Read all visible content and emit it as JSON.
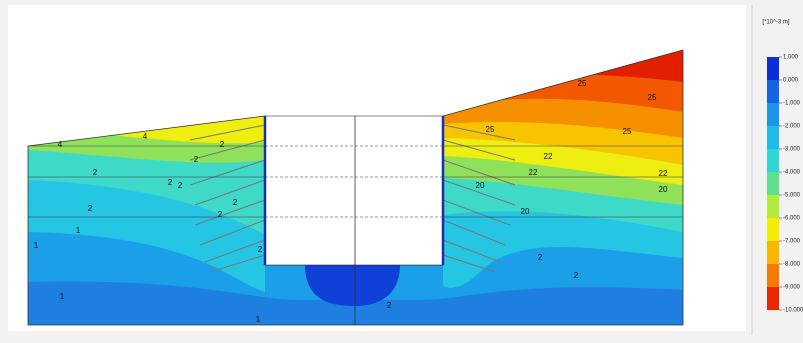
{
  "legend": {
    "unit": "[*10^-3 m]",
    "ticks": [
      {
        "value": 1,
        "label": "1.000"
      },
      {
        "value": 0,
        "label": "0.000"
      },
      {
        "value": -1,
        "label": "-1.000"
      },
      {
        "value": -2,
        "label": "-2.000"
      },
      {
        "value": -3,
        "label": "-3.000"
      },
      {
        "value": -4,
        "label": "-4.000"
      },
      {
        "value": -5,
        "label": "-5.000"
      },
      {
        "value": -6,
        "label": "-6.000"
      },
      {
        "value": -7,
        "label": "-7.000"
      },
      {
        "value": -8,
        "label": "-8.000"
      },
      {
        "value": -9,
        "label": "-9.000"
      },
      {
        "value": -10,
        "label": "-10.000"
      }
    ],
    "colors": [
      "#0a2fd6",
      "#1565e0",
      "#1a95ea",
      "#1fbbe8",
      "#2fd6d2",
      "#5ee08c",
      "#b4ea3a",
      "#f2ee00",
      "#f8b800",
      "#f47a00",
      "#e82800"
    ]
  },
  "contour_labels": [
    "4",
    "4",
    "2",
    "2",
    "2",
    "2",
    "1",
    "1",
    "1",
    "1",
    "2",
    "2",
    "2",
    "2",
    "2",
    "25",
    "25",
    "25",
    "22",
    "22",
    "22",
    "20",
    "20",
    "20",
    "2",
    "2",
    "2",
    "25"
  ]
}
